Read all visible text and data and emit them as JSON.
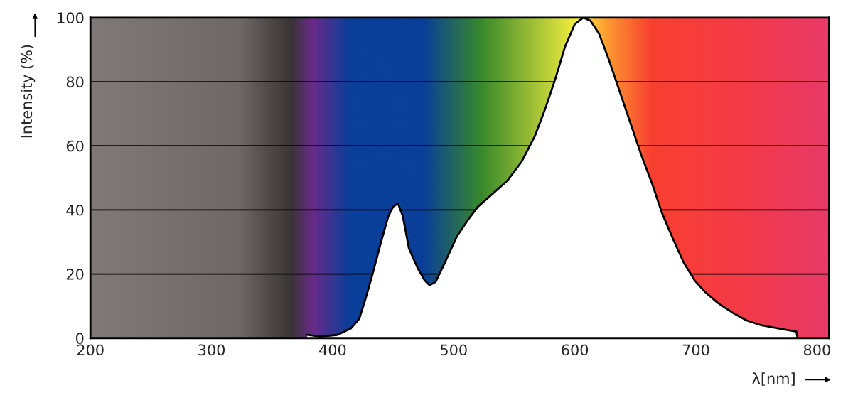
{
  "chart_data": {
    "type": "area",
    "ylabel": "Intensity (%)",
    "xlabel": "λ[nm]",
    "xlim": [
      200,
      810
    ],
    "xticks": [
      200,
      300,
      400,
      500,
      600,
      700,
      800
    ],
    "ylim": [
      0,
      100
    ],
    "yticks": [
      0,
      20,
      40,
      60,
      80,
      100
    ],
    "grid": "y",
    "series": [
      {
        "color": "#ffffff",
        "x": [
          379,
          390,
          404,
          415,
          422,
          427,
          433,
          440,
          446,
          450,
          454,
          458,
          463,
          470,
          476,
          480,
          485,
          492,
          503,
          512,
          520,
          532,
          544,
          556,
          567,
          576,
          584,
          592,
          600,
          607,
          613,
          620,
          628,
          637,
          646,
          655,
          664,
          672,
          681,
          690,
          699,
          707,
          718,
          730,
          742,
          754,
          768,
          783,
          784
        ],
        "values": [
          1,
          0.5,
          1,
          3,
          6,
          12,
          20,
          30,
          38,
          41,
          42,
          38,
          28,
          22,
          18,
          16.5,
          17.5,
          23,
          32,
          37,
          41,
          45,
          49,
          55,
          63,
          72,
          81,
          91,
          98,
          100,
          99,
          95,
          87,
          77,
          67,
          57,
          48,
          39,
          31,
          23.5,
          18,
          14.6,
          11,
          8,
          5.5,
          4,
          3,
          2,
          0
        ]
      }
    ]
  }
}
